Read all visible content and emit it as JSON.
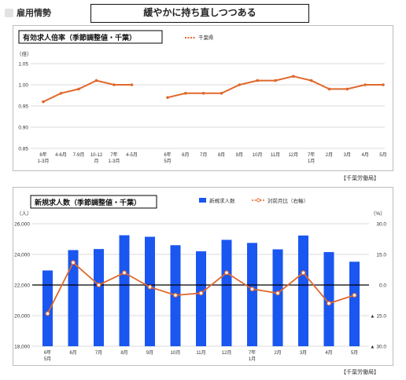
{
  "header": {
    "section_label": "雇用情勢",
    "headline": "緩やかに持ち直しつつある"
  },
  "source_label": "【千葉労働局】",
  "colors": {
    "bar": "#1a56f0",
    "line": "#e0682c",
    "grid": "#cfcfcf",
    "zero": "#000000"
  },
  "chart_data": [
    {
      "type": "line",
      "title": "有効求人倍率（季節調整値・千葉）",
      "ylabel": "（倍）",
      "ylim": [
        0.85,
        1.05
      ],
      "yticks": [
        "1.05",
        "1.00",
        "0.95",
        "0.90",
        "0.85"
      ],
      "categories": [
        [
          "6年",
          "1-3月"
        ],
        [
          "4-6月"
        ],
        [
          "7-9月"
        ],
        [
          "10-12",
          "月"
        ],
        [
          "7年",
          "1-3月"
        ],
        [
          "4-5月"
        ],
        [
          "6年",
          "5月"
        ],
        [
          "6月"
        ],
        [
          "7月"
        ],
        [
          "8月"
        ],
        [
          "9月"
        ],
        [
          "10月"
        ],
        [
          "11月"
        ],
        [
          "12月"
        ],
        [
          "7年",
          "1月"
        ],
        [
          "2月"
        ],
        [
          "3月"
        ],
        [
          "4月"
        ],
        [
          "5月"
        ]
      ],
      "series": [
        {
          "name": "千葉県",
          "segments": [
            [
              0.96,
              0.98,
              0.99,
              1.01,
              1.0,
              1.0
            ],
            [
              0.97,
              0.98,
              0.98,
              0.98,
              1.0,
              1.01,
              1.01,
              1.02,
              1.01,
              0.99,
              0.99,
              1.0,
              1.0
            ]
          ]
        }
      ]
    },
    {
      "type": "bar+line",
      "title": "新規求人数（季節調整値・千葉）",
      "ylabel_left": "（人）",
      "ylabel_right": "（%）",
      "ylim_left": [
        18000,
        26000
      ],
      "ylim_right": [
        -30,
        30
      ],
      "yticks_left": [
        "26,000",
        "24,000",
        "22,000",
        "20,000",
        "18,000"
      ],
      "yticks_right": [
        "30.0",
        "15.0",
        "0.0",
        "▲ 15.0",
        "▲ 30.0"
      ],
      "categories": [
        [
          "6年",
          "5月"
        ],
        [
          "6月"
        ],
        [
          "7月"
        ],
        [
          "8月"
        ],
        [
          "9月"
        ],
        [
          "10月"
        ],
        [
          "11月"
        ],
        [
          "12月"
        ],
        [
          "7年",
          "1月"
        ],
        [
          "2月"
        ],
        [
          "3月"
        ],
        [
          "4月"
        ],
        [
          "5月"
        ]
      ],
      "series": [
        {
          "name": "新規求人数",
          "type": "bar",
          "axis": "left",
          "values": [
            22950,
            24280,
            24350,
            25250,
            25150,
            24600,
            24200,
            24950,
            24750,
            24330,
            25230,
            24150,
            23520
          ]
        },
        {
          "name": "対前月比（右軸）",
          "type": "line",
          "axis": "right",
          "values": [
            -14,
            11,
            0,
            6,
            -1,
            -5,
            -4,
            6,
            -2,
            -4,
            6,
            -9,
            -5
          ]
        }
      ]
    }
  ]
}
